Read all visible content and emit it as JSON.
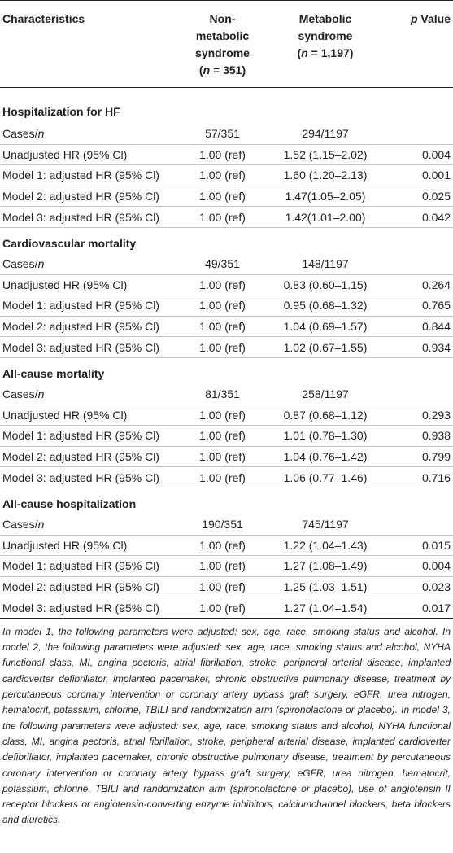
{
  "table": {
    "headers": {
      "characteristics": "Characteristics",
      "non_metabolic": {
        "l1": "Non-",
        "l2": "metabolic",
        "l3": "syndrome",
        "n_open": "(",
        "n_var": "n",
        "n_value": " = 351)"
      },
      "metabolic": {
        "l1": "Metabolic",
        "l2": "syndrome",
        "n_open": "(",
        "n_var": "n",
        "n_value": " = 1,197)"
      },
      "p_value": {
        "p": "p",
        "rest": " Value"
      }
    },
    "sections": [
      {
        "title": "Hospitalization for HF",
        "rows": [
          {
            "label": "Cases/",
            "label_italic": "n",
            "non_metabolic": "57/351",
            "metabolic": "294/1197",
            "p": ""
          },
          {
            "label": "Unadjusted HR (95% Cl)",
            "label_italic": "",
            "non_metabolic": "1.00 (ref)",
            "metabolic": "1.52 (1.15–2.02)",
            "p": "0.004"
          },
          {
            "label": "Model 1: adjusted HR (95% Cl)",
            "label_italic": "",
            "non_metabolic": "1.00 (ref)",
            "metabolic": "1.60 (1.20–2.13)",
            "p": "0.001"
          },
          {
            "label": "Model 2: adjusted HR (95% Cl)",
            "label_italic": "",
            "non_metabolic": "1.00 (ref)",
            "metabolic": "1.47(1.05–2.05)",
            "p": "0.025"
          },
          {
            "label": "Model 3: adjusted HR (95% Cl)",
            "label_italic": "",
            "non_metabolic": "1.00 (ref)",
            "metabolic": "1.42(1.01–2.00)",
            "p": "0.042"
          }
        ]
      },
      {
        "title": "Cardiovascular mortality",
        "rows": [
          {
            "label": "Cases/",
            "label_italic": "n",
            "non_metabolic": "49/351",
            "metabolic": "148/1197",
            "p": ""
          },
          {
            "label": "Unadjusted HR (95% Cl)",
            "label_italic": "",
            "non_metabolic": "1.00 (ref)",
            "metabolic": "0.83 (0.60–1.15)",
            "p": "0.264"
          },
          {
            "label": "Model 1: adjusted HR (95% Cl)",
            "label_italic": "",
            "non_metabolic": "1.00 (ref)",
            "metabolic": "0.95 (0.68–1.32)",
            "p": "0.765"
          },
          {
            "label": "Model 2: adjusted HR (95% Cl)",
            "label_italic": "",
            "non_metabolic": "1.00 (ref)",
            "metabolic": "1.04 (0.69–1.57)",
            "p": "0.844"
          },
          {
            "label": "Model 3: adjusted HR (95% Cl)",
            "label_italic": "",
            "non_metabolic": "1.00 (ref)",
            "metabolic": "1.02 (0.67–1.55)",
            "p": "0.934"
          }
        ]
      },
      {
        "title": "All-cause mortality",
        "rows": [
          {
            "label": "Cases/",
            "label_italic": "n",
            "non_metabolic": "81/351",
            "metabolic": "258/1197",
            "p": ""
          },
          {
            "label": "Unadjusted HR (95% Cl)",
            "label_italic": "",
            "non_metabolic": "1.00 (ref)",
            "metabolic": "0.87 (0.68–1.12)",
            "p": "0.293"
          },
          {
            "label": "Model 1: adjusted HR (95% Cl)",
            "label_italic": "",
            "non_metabolic": "1.00 (ref)",
            "metabolic": "1.01 (0.78–1.30)",
            "p": "0.938"
          },
          {
            "label": "Model 2: adjusted HR (95% Cl)",
            "label_italic": "",
            "non_metabolic": "1.00 (ref)",
            "metabolic": "1.04 (0.76–1.42)",
            "p": "0.799"
          },
          {
            "label": "Model 3: adjusted HR (95% Cl)",
            "label_italic": "",
            "non_metabolic": "1.00 (ref)",
            "metabolic": "1.06 (0.77–1.46)",
            "p": "0.716"
          }
        ]
      },
      {
        "title": "All-cause hospitalization",
        "rows": [
          {
            "label": "Cases/",
            "label_italic": "n",
            "non_metabolic": "190/351",
            "metabolic": "745/1197",
            "p": ""
          },
          {
            "label": "Unadjusted HR (95% Cl)",
            "label_italic": "",
            "non_metabolic": "1.00 (ref)",
            "metabolic": "1.22 (1.04–1.43)",
            "p": "0.015"
          },
          {
            "label": "Model 1: adjusted HR (95% Cl)",
            "label_italic": "",
            "non_metabolic": "1.00 (ref)",
            "metabolic": "1.27 (1.08–1.49)",
            "p": "0.004"
          },
          {
            "label": "Model 2: adjusted HR (95% Cl)",
            "label_italic": "",
            "non_metabolic": "1.00 (ref)",
            "metabolic": "1.25 (1.03–1.51)",
            "p": "0.023"
          },
          {
            "label": "Model 3: adjusted HR (95% Cl)",
            "label_italic": "",
            "non_metabolic": "1.00 (ref)",
            "metabolic": "1.27 (1.04–1.54)",
            "p": "0.017"
          }
        ]
      }
    ]
  },
  "footnote": "In model 1, the following parameters were adjusted: sex, age, race, smoking status and alcohol. In model 2, the following parameters were adjusted: sex, age, race, smoking status and alcohol, NYHA functional class, MI, angina pectoris, atrial fibrillation, stroke, peripheral arterial disease, implanted cardioverter defibrillator, implanted pacemaker, chronic obstructive pulmonary disease, treatment by percutaneous coronary intervention or coronary artery bypass graft surgery, eGFR, urea nitrogen, hematocrit, potassium, chlorine, TBILI and randomization arm (spironolactone or placebo). In model 3, the following parameters were adjusted: sex, age, race, smoking status and alcohol, NYHA functional class, MI, angina pectoris, atrial fibrillation, stroke, peripheral arterial disease, implanted cardioverter defibrillator, implanted pacemaker, chronic obstructive pulmonary disease, treatment by percutaneous coronary intervention or coronary artery bypass graft surgery, eGFR, urea nitrogen, hematocrit, potassium, chlorine, TBILI and randomization arm (spironolactone or placebo), use of angiotensin II receptor blockers or angiotensin-converting enzyme inhibitors, calciumchannel blockers, beta blockers and diuretics."
}
